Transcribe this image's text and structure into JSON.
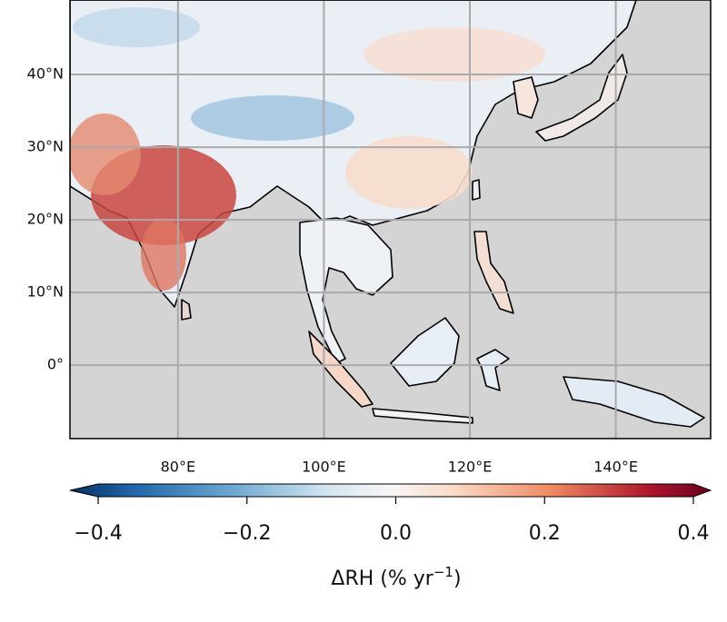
{
  "map": {
    "xlim": [
      65.2,
      153
    ],
    "ylim": [
      -10.1,
      50.25
    ],
    "lonticks": [
      {
        "value": 80,
        "label": "80°E"
      },
      {
        "value": 100,
        "label": "100°E"
      },
      {
        "value": 120,
        "label": "120°E"
      },
      {
        "value": 140,
        "label": "140°E"
      }
    ],
    "latticks": [
      {
        "value": 40,
        "label": "40°N"
      },
      {
        "value": 30,
        "label": "30°N"
      },
      {
        "value": 20,
        "label": "20°N"
      },
      {
        "value": 10,
        "label": "10°N"
      },
      {
        "value": 0,
        "label": "0°"
      }
    ],
    "grid": true
  },
  "colorbar": {
    "lim": [
      -0.4,
      0.4
    ],
    "ticks": [
      {
        "value": -0.4,
        "label": "−0.4"
      },
      {
        "value": -0.2,
        "label": "−0.2"
      },
      {
        "value": 0,
        "label": "0.0"
      },
      0.2,
      0.4
    ],
    "label": "ΔRH (% yr",
    "label_sup": "−1",
    "label_end": ")"
  }
}
